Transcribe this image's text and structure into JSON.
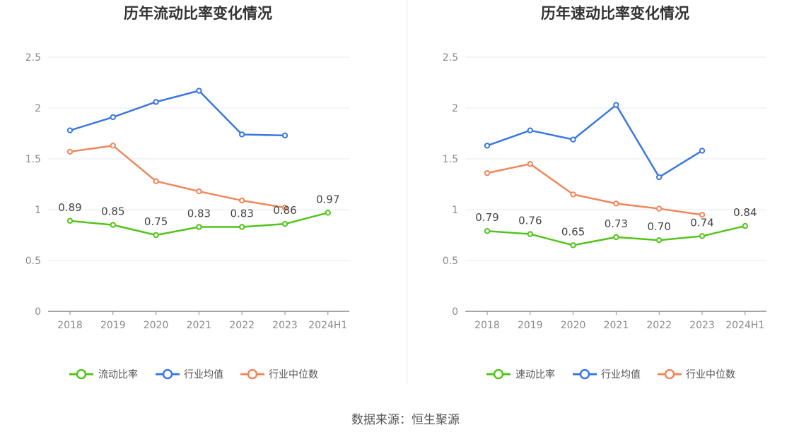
{
  "charts": [
    {
      "title": "历年流动比率变化情况",
      "legend": [
        "流动比率",
        "行业均值",
        "行业中位数"
      ]
    },
    {
      "title": "历年速动比率变化情况",
      "legend": [
        "速动比率",
        "行业均值",
        "行业中位数"
      ]
    }
  ],
  "source": "数据来源：恒生聚源",
  "colors": {
    "company": "#52c41a",
    "avg": "#3a78e0",
    "median": "#f0875a"
  },
  "chart_data": [
    {
      "type": "line",
      "title": "历年流动比率变化情况",
      "categories": [
        "2018",
        "2019",
        "2020",
        "2021",
        "2022",
        "2023",
        "2024H1"
      ],
      "yticks": [
        "0",
        "0.5",
        "1",
        "1.5",
        "2",
        "2.5"
      ],
      "ylim": [
        0,
        2.5
      ],
      "legend_position": "bottom",
      "series": [
        {
          "name": "流动比率",
          "values": [
            0.89,
            0.85,
            0.75,
            0.83,
            0.83,
            0.86,
            0.97
          ],
          "labels": [
            "0.89",
            "0.85",
            "0.75",
            "0.83",
            "0.83",
            "0.86",
            "0.97"
          ]
        },
        {
          "name": "行业均值",
          "values": [
            1.78,
            1.91,
            2.06,
            2.17,
            1.74,
            1.73,
            null
          ]
        },
        {
          "name": "行业中位数",
          "values": [
            1.57,
            1.63,
            1.28,
            1.18,
            1.09,
            1.02,
            null
          ]
        }
      ]
    },
    {
      "type": "line",
      "title": "历年速动比率变化情况",
      "categories": [
        "2018",
        "2019",
        "2020",
        "2021",
        "2022",
        "2023",
        "2024H1"
      ],
      "yticks": [
        "0",
        "0.5",
        "1",
        "1.5",
        "2",
        "2.5"
      ],
      "ylim": [
        0,
        2.5
      ],
      "legend_position": "bottom",
      "series": [
        {
          "name": "速动比率",
          "values": [
            0.79,
            0.76,
            0.65,
            0.73,
            0.7,
            0.74,
            0.84
          ],
          "labels": [
            "0.79",
            "0.76",
            "0.65",
            "0.73",
            "0.70",
            "0.74",
            "0.84"
          ]
        },
        {
          "name": "行业均值",
          "values": [
            1.63,
            1.78,
            1.69,
            2.03,
            1.32,
            1.58,
            null
          ]
        },
        {
          "name": "行业中位数",
          "values": [
            1.36,
            1.45,
            1.15,
            1.06,
            1.01,
            0.95,
            null
          ]
        }
      ]
    }
  ]
}
